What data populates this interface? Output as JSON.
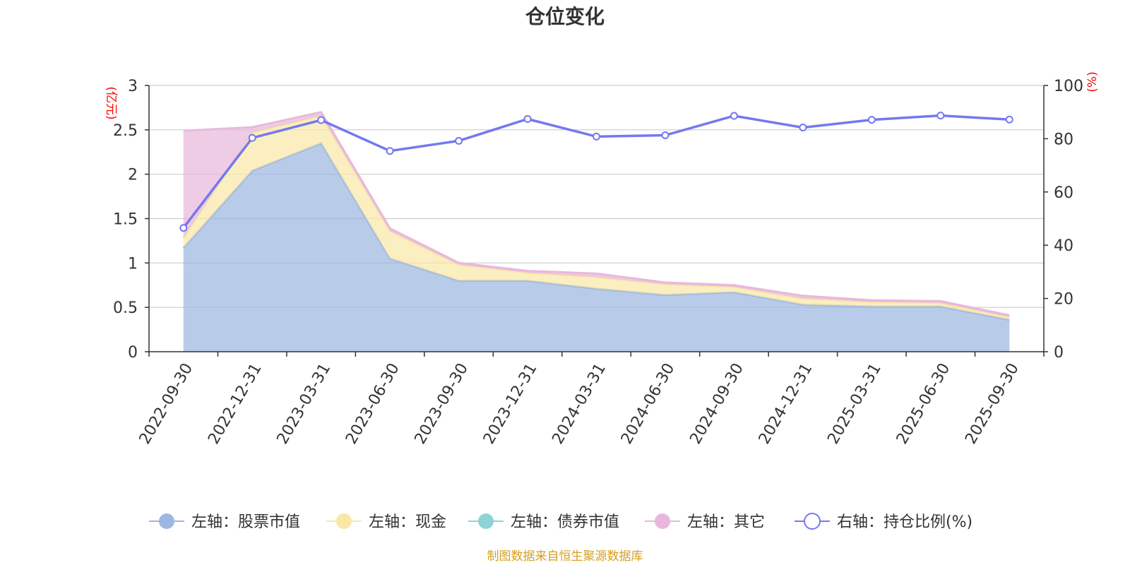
{
  "chart_data": {
    "type": "area",
    "title": "仓位变化",
    "categories": [
      "2022-09-30",
      "2022-12-31",
      "2023-03-31",
      "2023-06-30",
      "2023-09-30",
      "2023-12-31",
      "2024-03-31",
      "2024-06-30",
      "2024-09-30",
      "2024-12-31",
      "2025-03-31",
      "2025-06-30",
      "2025-09-30"
    ],
    "left_axis": {
      "unit": "(亿元)",
      "ylim": [
        0,
        3
      ],
      "ticks": [
        "0",
        "0.5",
        "1",
        "1.5",
        "2",
        "2.5",
        "3"
      ]
    },
    "right_axis": {
      "unit": "(%)",
      "ylim": [
        0,
        100
      ],
      "ticks": [
        "0",
        "20",
        "40",
        "60",
        "80",
        "100"
      ]
    },
    "stacked": true,
    "series": [
      {
        "name": "左轴：股票市值",
        "axis": "left",
        "color": "#9db8e0",
        "values": [
          1.17,
          2.04,
          2.35,
          1.05,
          0.8,
          0.8,
          0.71,
          0.64,
          0.67,
          0.53,
          0.51,
          0.51,
          0.36
        ]
      },
      {
        "name": "左轴：现金",
        "axis": "left",
        "color": "#f9e7a8",
        "values": [
          0.11,
          0.43,
          0.31,
          0.31,
          0.18,
          0.09,
          0.13,
          0.12,
          0.06,
          0.07,
          0.05,
          0.04,
          0.03
        ]
      },
      {
        "name": "左轴：债券市值",
        "axis": "left",
        "color": "#8fd3d6",
        "values": [
          0,
          0,
          0,
          0,
          0,
          0,
          0,
          0,
          0,
          0,
          0,
          0,
          0
        ]
      },
      {
        "name": "左轴：其它",
        "axis": "left",
        "color": "#e8b8dc",
        "values": [
          1.21,
          0.06,
          0.04,
          0.03,
          0.02,
          0.02,
          0.04,
          0.02,
          0.02,
          0.03,
          0.02,
          0.02,
          0.02
        ]
      },
      {
        "name": "右轴：持仓比例(%)",
        "axis": "right",
        "color": "#7479ee",
        "values": [
          46.5,
          80.3,
          87.0,
          75.4,
          79.2,
          87.4,
          80.8,
          81.3,
          88.6,
          84.2,
          87.1,
          88.7,
          87.2
        ]
      }
    ]
  },
  "footer": {
    "source": "制图数据来自恒生聚源数据库"
  }
}
